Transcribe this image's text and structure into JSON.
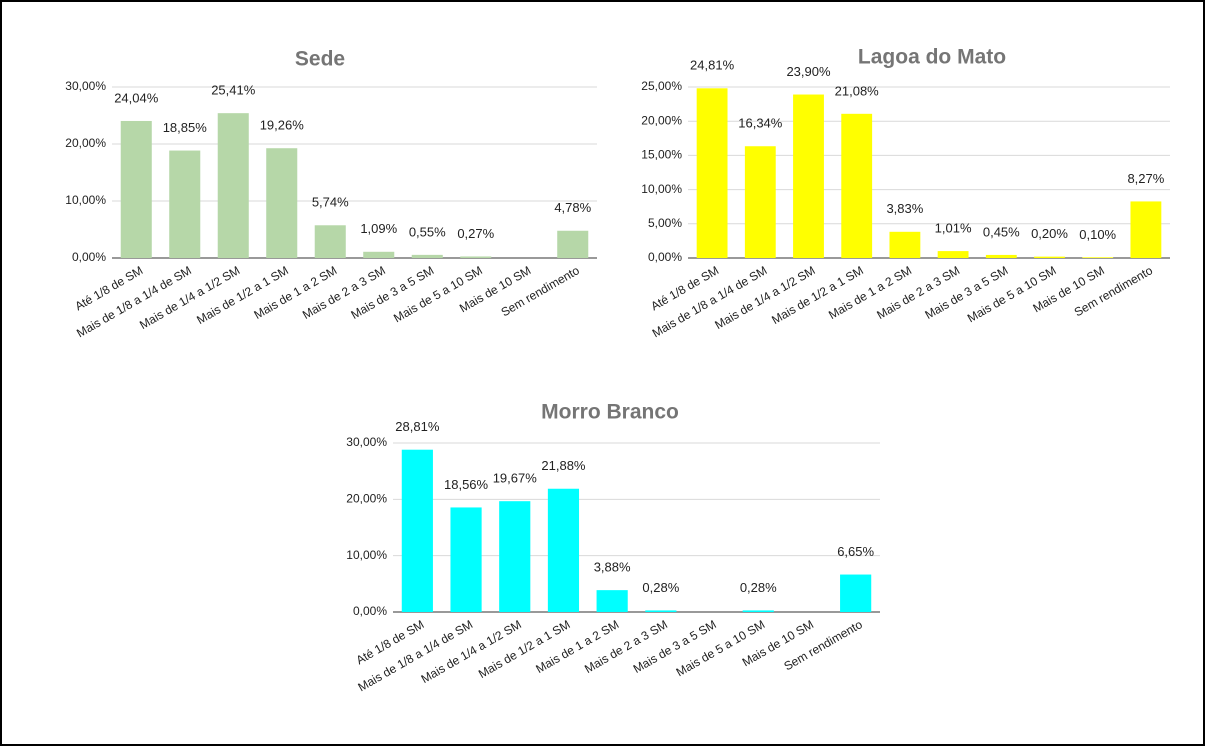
{
  "chart_data": [
    {
      "type": "bar",
      "title": "Sede",
      "categories": [
        "Até 1/8 de SM",
        "Mais de 1/8 a 1/4 de SM",
        "Mais de 1/4 a 1/2 SM",
        "Mais de 1/2 a 1 SM",
        "Mais de 1 a 2 SM",
        "Mais de 2 a 3 SM",
        "Mais de 3 a 5 SM",
        "Mais de 5 a 10 SM",
        "Mais de 10 SM",
        "Sem rendimento"
      ],
      "values": [
        24.04,
        18.85,
        25.41,
        19.26,
        5.74,
        1.09,
        0.55,
        0.27,
        null,
        4.78
      ],
      "value_labels": [
        "24,04%",
        "18,85%",
        "25,41%",
        "19,26%",
        "5,74%",
        "1,09%",
        "0,55%",
        "0,27%",
        null,
        "4,78%"
      ],
      "color": "#b6d7a8",
      "ylim": [
        0,
        30
      ],
      "yticks": [
        {
          "value": 0,
          "label": "0,00%"
        },
        {
          "value": 10,
          "label": "10,00%"
        },
        {
          "value": 20,
          "label": "20,00%"
        },
        {
          "value": 30,
          "label": "30,00%"
        }
      ],
      "grid": true
    },
    {
      "type": "bar",
      "title": "Lagoa do Mato",
      "categories": [
        "Até 1/8 de SM",
        "Mais de 1/8 a 1/4 de SM",
        "Mais de 1/4 a 1/2 SM",
        "Mais de 1/2 a 1 SM",
        "Mais de 1 a 2 SM",
        "Mais de 2 a 3 SM",
        "Mais de 3 a 5 SM",
        "Mais de 5 a 10 SM",
        "Mais de 10 SM",
        "Sem rendimento"
      ],
      "values": [
        24.81,
        16.34,
        23.9,
        21.08,
        3.83,
        1.01,
        0.45,
        0.2,
        0.1,
        8.27
      ],
      "value_labels": [
        "24,81%",
        "16,34%",
        "23,90%",
        "21,08%",
        "3,83%",
        "1,01%",
        "0,45%",
        "0,20%",
        "0,10%",
        "8,27%"
      ],
      "color": "#ffff00",
      "ylim": [
        0,
        25
      ],
      "yticks": [
        {
          "value": 0,
          "label": "0,00%"
        },
        {
          "value": 5,
          "label": "5,00%"
        },
        {
          "value": 10,
          "label": "10,00%"
        },
        {
          "value": 15,
          "label": "15,00%"
        },
        {
          "value": 20,
          "label": "20,00%"
        },
        {
          "value": 25,
          "label": "25,00%"
        }
      ],
      "grid": true
    },
    {
      "type": "bar",
      "title": "Morro Branco",
      "categories": [
        "Até 1/8 de SM",
        "Mais de 1/8 a 1/4 de SM",
        "Mais de 1/4 a 1/2 SM",
        "Mais de 1/2 a 1 SM",
        "Mais de 1 a 2 SM",
        "Mais de 2 a 3 SM",
        "Mais de 3 a 5 SM",
        "Mais de 5 a 10 SM",
        "Mais de 10 SM",
        "Sem rendimento"
      ],
      "values": [
        28.81,
        18.56,
        19.67,
        21.88,
        3.88,
        0.28,
        null,
        0.28,
        null,
        6.65
      ],
      "value_labels": [
        "28,81%",
        "18,56%",
        "19,67%",
        "21,88%",
        "3,88%",
        "0,28%",
        null,
        "0,28%",
        null,
        "6,65%"
      ],
      "color": "#00ffff",
      "ylim": [
        0,
        30
      ],
      "yticks": [
        {
          "value": 0,
          "label": "0,00%"
        },
        {
          "value": 10,
          "label": "10,00%"
        },
        {
          "value": 20,
          "label": "20,00%"
        },
        {
          "value": 30,
          "label": "30,00%"
        }
      ],
      "grid": true
    }
  ]
}
